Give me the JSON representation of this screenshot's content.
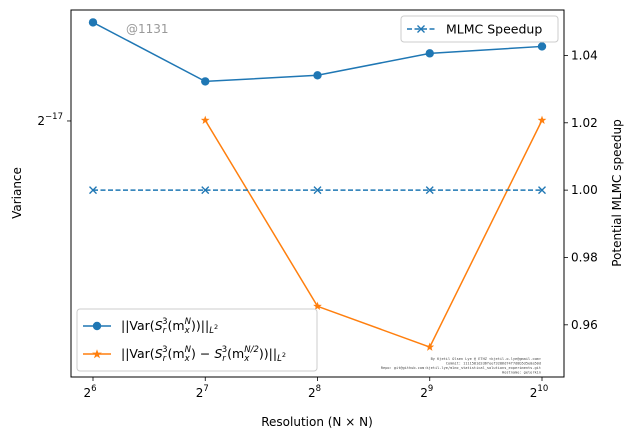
{
  "chart_data": {
    "type": "line",
    "xlabel": "Resolution (N × N)",
    "ylabel_left": "Variance",
    "ylabel_right": "Potential MLMC speedup",
    "x_scale": "log2",
    "x": [
      64,
      128,
      256,
      512,
      1024
    ],
    "x_tick_labels": [
      "2",
      "2",
      "2",
      "2",
      "2"
    ],
    "x_tick_exponents": [
      "6",
      "7",
      "8",
      "9",
      "10"
    ],
    "left_scale": "log2",
    "left_tick_value": 7.62939453125e-06,
    "left_tick_label_base": "2",
    "left_tick_label_exp": "−17",
    "left_ylim": [
      4.6e-06,
      9.5e-06
    ],
    "right_ylim": [
      0.9445,
      1.0535
    ],
    "right_ticks": [
      0.96,
      0.98,
      1.0,
      1.02,
      1.04
    ],
    "right_tick_labels": [
      "0.96",
      "0.98",
      "1.00",
      "1.02",
      "1.04"
    ],
    "series": [
      {
        "name": "||Var(S_r^3(m_x^N))||_{L^2}",
        "axis": "left",
        "color": "#1f77b4",
        "marker": "circle",
        "linestyle": "solid",
        "x": [
          64,
          128,
          256,
          512,
          1024
        ],
        "values": [
          9.27e-06,
          8.25e-06,
          8.35e-06,
          8.72e-06,
          8.84e-06
        ]
      },
      {
        "name": "||Var(S_r^3(m_x^N) − S_r^3(m_x^{N/2}))||_{L^2}",
        "axis": "left",
        "color": "#ff7f0e",
        "marker": "star",
        "linestyle": "solid",
        "x": [
          128,
          256,
          512,
          1024
        ],
        "values": [
          7.64e-06,
          5.29e-06,
          4.88e-06,
          7.64e-06
        ]
      },
      {
        "name": "MLMC Speedup",
        "axis": "right",
        "color": "#1f77b4",
        "marker": "x",
        "linestyle": "dashed",
        "x": [
          64,
          128,
          256,
          512,
          1024
        ],
        "values": [
          1.0,
          1.0,
          1.0,
          1.0,
          1.0
        ]
      }
    ],
    "legend_main_position": "lower-left",
    "legend_secondary_position": "upper-right",
    "legend_main": {
      "s1_prefix": "||Var(",
      "s1_S": "S",
      "s1_sub": "r",
      "s1_sup": "3",
      "s1_m": "(m",
      "s1_msub": "x",
      "s1_msup": "N",
      "s1_suffix": "))||",
      "s1_L": "L",
      "s1_Lsup": "2",
      "s2_prefix": "||Var(",
      "s2_S": "S",
      "s2_sub": "r",
      "s2_sup": "3",
      "s2_m": "(m",
      "s2_msub": "x",
      "s2_msup": "N",
      "s2_mid": ") − ",
      "s2_S2": "S",
      "s2_sub2": "r",
      "s2_sup2": "3",
      "s2_m2": "(m",
      "s2_msub2": "x",
      "s2_msup2": "N/2",
      "s2_suffix": "))||",
      "s2_L": "L",
      "s2_Lsup": "2"
    },
    "legend_secondary_label": "MLMC Speedup",
    "watermark": "@1131",
    "footnote_lines": [
      "By Kjetil Olsen Lye @ ETHZ <kjetil.o.lye@gmail.com>",
      "Commit: 1111581d2d6feef3286d74f7d8b5d5e0a50d",
      "Repo: git@github.com:kjetil-lye/mlmc_statistical_solutions_experiments.git",
      "Hostname: gelerkin"
    ]
  }
}
